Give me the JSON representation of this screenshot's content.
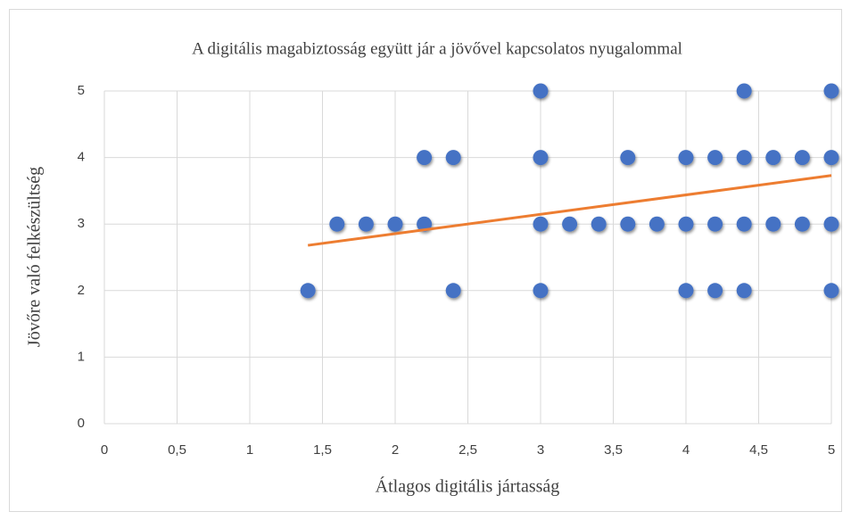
{
  "chart_data": {
    "type": "scatter",
    "title": "A digitális magabiztosság együtt jár a jövővel kapcsolatos nyugalommal",
    "x_label": "Átlagos digitális jártasság",
    "y_label": "Jövőre való felkészültség",
    "xlim": [
      0,
      5
    ],
    "ylim": [
      0,
      5
    ],
    "xticks": [
      0,
      {
        "value": 0.5,
        "label": "0,5"
      },
      1,
      {
        "value": 1.5,
        "label": "1,5"
      },
      2,
      {
        "value": 2.5,
        "label": "2,5"
      },
      3,
      {
        "value": 3.5,
        "label": "3,5"
      },
      4,
      {
        "value": 4.5,
        "label": "4,5"
      },
      5
    ],
    "yticks": [
      0,
      1,
      2,
      3,
      4,
      5
    ],
    "grid": true,
    "series": [
      {
        "color": "#4472c4",
        "x": [
          3,
          4.4,
          5,
          2.2,
          2.4,
          3,
          3.6,
          4,
          4.2,
          4.4,
          4.6,
          4.8,
          5,
          1.6,
          1.8,
          2,
          2.2,
          3,
          3.2,
          3.4,
          3.6,
          3.8,
          4,
          4.2,
          4.4,
          4.6,
          4.8,
          5,
          1.4,
          2.4,
          3,
          4,
          4.2,
          4.4,
          5
        ],
        "values": [
          5,
          5,
          5,
          4,
          4,
          4,
          4,
          4,
          4,
          4,
          4,
          4,
          4,
          3,
          3,
          3,
          3,
          3,
          3,
          3,
          3,
          3,
          3,
          3,
          3,
          3,
          3,
          3,
          2,
          2,
          2,
          2,
          2,
          2,
          2
        ]
      },
      {
        "type": "line",
        "color": "#ed7d31",
        "x": [
          1.4,
          5
        ],
        "values": [
          2.68,
          3.73
        ]
      }
    ]
  }
}
